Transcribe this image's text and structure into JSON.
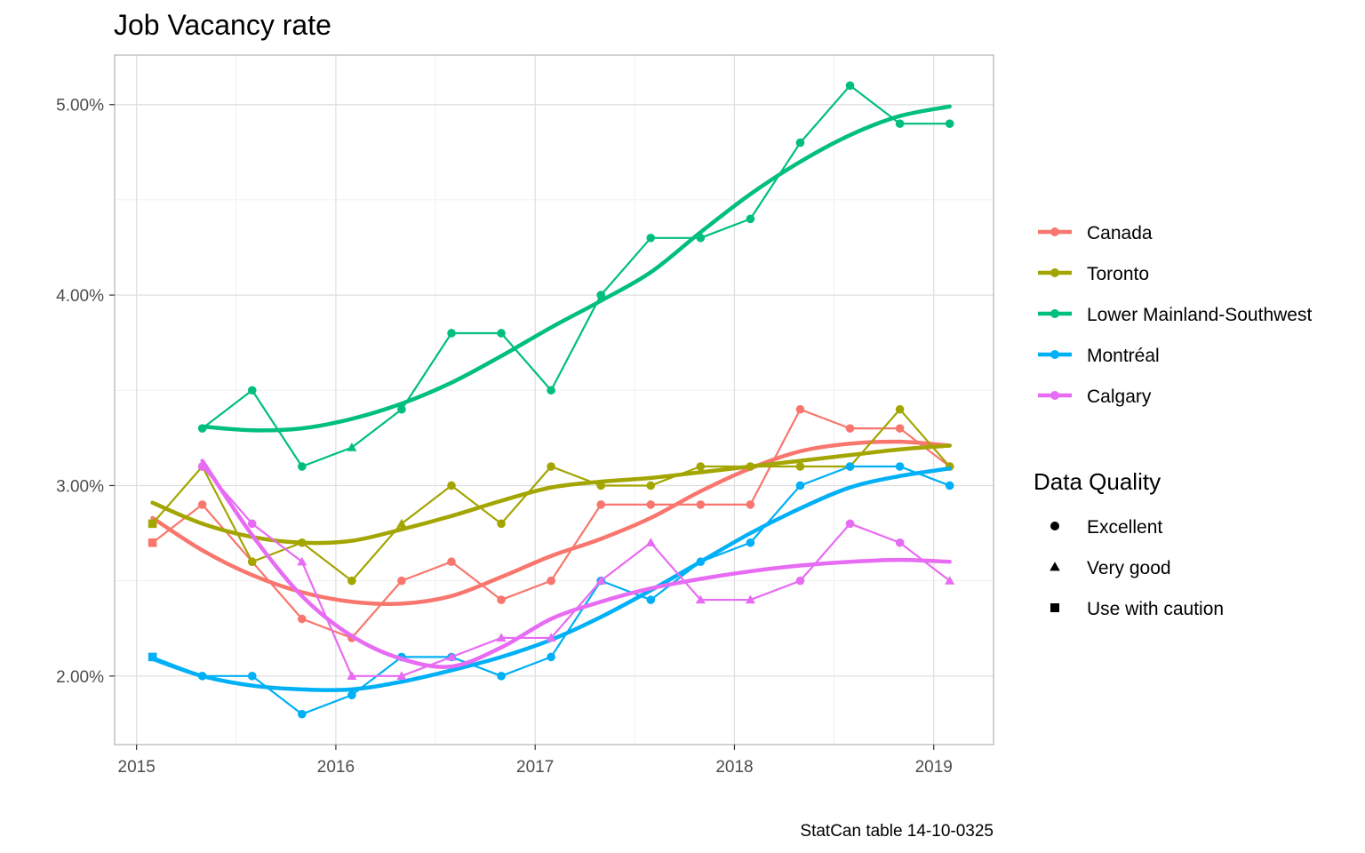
{
  "chart_data": {
    "type": "line",
    "title": "Job Vacancy rate",
    "caption": "StatCan table 14-10-0325",
    "xlabel": "",
    "ylabel": "",
    "x_ticks": [
      "2015",
      "2016",
      "2017",
      "2018",
      "2019"
    ],
    "y_ticks": [
      "2.00%",
      "3.00%",
      "4.00%",
      "5.00%"
    ],
    "x_tick_values": [
      2015,
      2016,
      2017,
      2018,
      2019
    ],
    "y_tick_values": [
      2.0,
      3.0,
      4.0,
      5.0
    ],
    "xlim": [
      2014.89,
      2019.3
    ],
    "ylim": [
      1.64,
      5.26
    ],
    "grid": true,
    "legend_position": "right",
    "quarters": [
      2015.08,
      2015.33,
      2015.58,
      2015.83,
      2016.08,
      2016.33,
      2016.58,
      2016.83,
      2017.08,
      2017.33,
      2017.58,
      2017.83,
      2018.08,
      2018.33,
      2018.58,
      2018.83,
      2019.08
    ],
    "series": [
      {
        "name": "Canada",
        "color": "#F8766D",
        "values": [
          2.7,
          2.9,
          2.6,
          2.3,
          2.2,
          2.5,
          2.6,
          2.4,
          2.5,
          2.9,
          2.9,
          2.9,
          2.9,
          3.4,
          3.3,
          3.3,
          3.1
        ],
        "quality": [
          "Use with caution",
          "Excellent",
          "Excellent",
          "Excellent",
          "Excellent",
          "Excellent",
          "Excellent",
          "Excellent",
          "Excellent",
          "Excellent",
          "Excellent",
          "Excellent",
          "Excellent",
          "Excellent",
          "Excellent",
          "Excellent",
          "Excellent"
        ],
        "smooth": [
          2.83,
          2.66,
          2.53,
          2.44,
          2.39,
          2.38,
          2.42,
          2.52,
          2.63,
          2.72,
          2.83,
          2.97,
          3.09,
          3.18,
          3.22,
          3.23,
          3.21
        ]
      },
      {
        "name": "Toronto",
        "color": "#A3A500",
        "values": [
          2.8,
          3.1,
          2.6,
          2.7,
          2.5,
          2.8,
          3.0,
          2.8,
          3.1,
          3.0,
          3.0,
          3.1,
          3.1,
          3.1,
          3.1,
          3.4,
          3.1
        ],
        "quality": [
          "Use with caution",
          "Excellent",
          "Excellent",
          "Excellent",
          "Excellent",
          "Very good",
          "Excellent",
          "Excellent",
          "Excellent",
          "Excellent",
          "Excellent",
          "Excellent",
          "Excellent",
          "Excellent",
          "Excellent",
          "Excellent",
          "Excellent"
        ],
        "smooth": [
          2.91,
          2.8,
          2.73,
          2.7,
          2.71,
          2.77,
          2.84,
          2.92,
          2.99,
          3.02,
          3.04,
          3.07,
          3.1,
          3.13,
          3.16,
          3.19,
          3.21
        ]
      },
      {
        "name": "Lower Mainland-Southwest",
        "color": "#00BF7D",
        "values": [
          null,
          3.3,
          3.5,
          3.1,
          3.2,
          3.4,
          3.8,
          3.8,
          3.5,
          4.0,
          4.3,
          4.3,
          4.4,
          4.8,
          5.1,
          4.9,
          4.9
        ],
        "quality": [
          null,
          "Excellent",
          "Excellent",
          "Excellent",
          "Very good",
          "Excellent",
          "Excellent",
          "Excellent",
          "Excellent",
          "Excellent",
          "Excellent",
          "Excellent",
          "Excellent",
          "Excellent",
          "Excellent",
          "Excellent",
          "Excellent"
        ],
        "smooth": [
          null,
          3.31,
          3.29,
          3.3,
          3.35,
          3.43,
          3.54,
          3.68,
          3.83,
          3.97,
          4.12,
          4.33,
          4.53,
          4.7,
          4.84,
          4.94,
          4.99
        ]
      },
      {
        "name": "Montréal",
        "color": "#00B0F6",
        "values": [
          2.1,
          2.0,
          2.0,
          1.8,
          1.9,
          2.1,
          2.1,
          2.0,
          2.1,
          2.5,
          2.4,
          2.6,
          2.7,
          3.0,
          3.1,
          3.1,
          3.0
        ],
        "quality": [
          "Use with caution",
          "Excellent",
          "Excellent",
          "Excellent",
          "Excellent",
          "Excellent",
          "Excellent",
          "Excellent",
          "Excellent",
          "Excellent",
          "Excellent",
          "Excellent",
          "Excellent",
          "Excellent",
          "Excellent",
          "Excellent",
          "Excellent"
        ],
        "smooth": [
          2.09,
          2.0,
          1.95,
          1.93,
          1.93,
          1.97,
          2.03,
          2.1,
          2.19,
          2.31,
          2.45,
          2.6,
          2.75,
          2.88,
          2.99,
          3.05,
          3.09
        ]
      },
      {
        "name": "Calgary",
        "color": "#E76BF3",
        "values": [
          null,
          3.1,
          2.8,
          2.6,
          2.0,
          2.0,
          2.1,
          2.2,
          2.2,
          2.5,
          2.7,
          2.4,
          2.4,
          2.5,
          2.8,
          2.7,
          2.5
        ],
        "quality": [
          null,
          "Excellent",
          "Excellent",
          "Very good",
          "Very good",
          "Very good",
          "Very good",
          "Very good",
          "Very good",
          "Very good",
          "Very good",
          "Very good",
          "Very good",
          "Excellent",
          "Excellent",
          "Excellent",
          "Very good"
        ],
        "smooth": [
          null,
          3.13,
          2.74,
          2.42,
          2.21,
          2.09,
          2.05,
          2.15,
          2.3,
          2.39,
          2.46,
          2.51,
          2.55,
          2.58,
          2.6,
          2.61,
          2.6
        ]
      }
    ],
    "shape_legend": {
      "title": "Data Quality",
      "items": [
        {
          "label": "Excellent",
          "shape": "circle"
        },
        {
          "label": "Very good",
          "shape": "triangle"
        },
        {
          "label": "Use with caution",
          "shape": "square"
        }
      ]
    }
  }
}
